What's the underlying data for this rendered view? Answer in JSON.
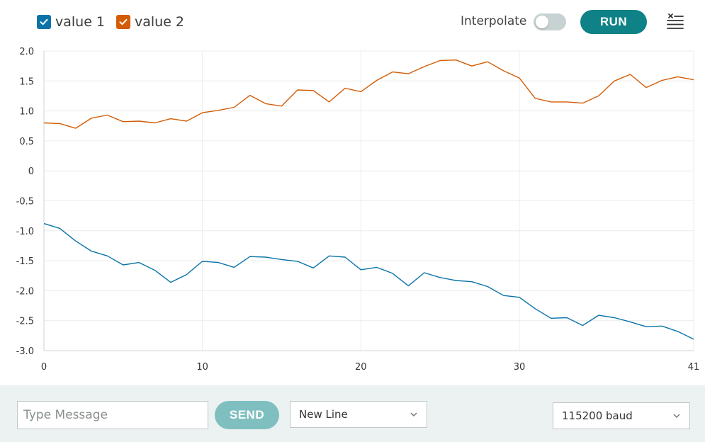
{
  "legend": [
    {
      "label": "value 1",
      "color": "#0b73a8"
    },
    {
      "label": "value 2",
      "color": "#d35c05"
    }
  ],
  "toolbar": {
    "interpolate_label": "Interpolate",
    "interpolate_on": false,
    "run_label": "RUN",
    "clear_icon": "clear-list-icon"
  },
  "footer": {
    "message_placeholder": "Type Message",
    "send_label": "SEND",
    "line_ending": "New Line",
    "baud_rate": "115200 baud"
  },
  "chart_data": {
    "type": "line",
    "xlim": [
      0,
      41
    ],
    "ylim": [
      -3.0,
      2.0
    ],
    "x_ticks": [
      0,
      10,
      20,
      30,
      41
    ],
    "y_ticks": [
      "2.0",
      "1.5",
      "1.0",
      "0.5",
      "0",
      "-0.5",
      "-1.0",
      "-1.5",
      "-2.0",
      "-2.5",
      "-3.0"
    ],
    "grid": true,
    "x": [
      0,
      1,
      2,
      3,
      4,
      5,
      6,
      7,
      8,
      9,
      10,
      11,
      12,
      13,
      14,
      15,
      16,
      17,
      18,
      19,
      20,
      21,
      22,
      23,
      24,
      25,
      26,
      27,
      28,
      29,
      30,
      31,
      32,
      33,
      34,
      35,
      36,
      37,
      38,
      39,
      40,
      41
    ],
    "series": [
      {
        "name": "value 1",
        "color": "#0b73a8",
        "values": [
          -0.88,
          -0.96,
          -1.17,
          -1.34,
          -1.42,
          -1.57,
          -1.53,
          -1.66,
          -1.86,
          -1.73,
          -1.51,
          -1.53,
          -1.61,
          -1.43,
          -1.44,
          -1.48,
          -1.51,
          -1.62,
          -1.42,
          -1.44,
          -1.65,
          -1.61,
          -1.71,
          -1.92,
          -1.7,
          -1.78,
          -1.83,
          -1.85,
          -1.93,
          -2.08,
          -2.11,
          -2.3,
          -2.46,
          -2.45,
          -2.58,
          -2.41,
          -2.45,
          -2.52,
          -2.6,
          -2.59,
          -2.68,
          -2.81
        ]
      },
      {
        "name": "value 2",
        "color": "#d35c05",
        "values": [
          0.8,
          0.79,
          0.71,
          0.88,
          0.93,
          0.82,
          0.83,
          0.8,
          0.87,
          0.83,
          0.97,
          1.01,
          1.06,
          1.26,
          1.12,
          1.08,
          1.35,
          1.34,
          1.15,
          1.38,
          1.32,
          1.51,
          1.65,
          1.62,
          1.74,
          1.84,
          1.85,
          1.75,
          1.82,
          1.67,
          1.55,
          1.21,
          1.15,
          1.15,
          1.13,
          1.25,
          1.5,
          1.61,
          1.39,
          1.51,
          1.57,
          1.52
        ]
      }
    ]
  }
}
